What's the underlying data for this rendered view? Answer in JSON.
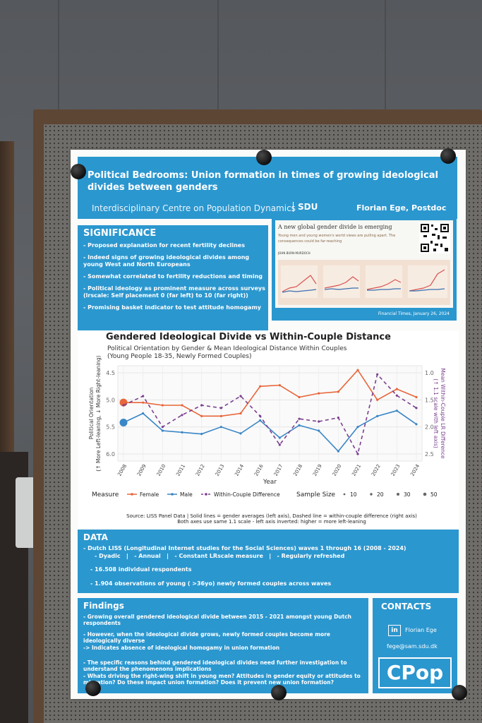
{
  "poster": {
    "title": "Political Bedrooms: Union formation in times of growing ideological divides between genders",
    "institute": "Interdisciplinary Centre on Population Dynamics",
    "university": "SDU",
    "author": "Florian Ege, Postdoc"
  },
  "significance": {
    "heading": "SIGNIFICANCE",
    "items": [
      "- Proposed explanation for recent fertility declines",
      "- Indeed signs of growing ideological divides among young West and North Europeans",
      "- Somewhat correlated to fertility reductions and timing",
      "- Political ideology as prominent measure across surveys (lrscale: Self placement 0 (far left) to 10 (far right))",
      "- Promising basket indicator to test attitude homogamy"
    ]
  },
  "clipping": {
    "headline": "A new global gender divide is emerging",
    "deck": "Young men and young women's world views are pulling apart. The consequences could be far-reaching",
    "byline": "JOHN BURN-MURDOCH",
    "caption": "Financial Times, January 26, 2024"
  },
  "chart_data": {
    "type": "line",
    "title": "Gendered Ideological Divide vs Within-Couple Distance",
    "subtitle": "Political Orientation by Gender & Mean Ideological Distance Within Couples",
    "subtitle2": "(Young People 18-35, Newly Formed Couples)",
    "xlabel": "Year",
    "ylabel": "Political Orientation",
    "ylabel2": "(↑ More Left-leaning, ↓ More Right-leaning)",
    "y2label": "Mean Within-Couple LR Difference",
    "y2label2": "(↑ 1.1 scale with left axis)",
    "x": [
      "2008",
      "2009",
      "2010",
      "2011",
      "2012",
      "2013",
      "2014",
      "2016",
      "2017",
      "2018",
      "2019",
      "2020",
      "2021",
      "2022",
      "2023",
      "2024"
    ],
    "ylim": [
      6.0,
      4.5
    ],
    "y2lim": [
      2.5,
      1.0
    ],
    "yticks": [
      "4.5",
      "5.0",
      "5.5",
      "6.0"
    ],
    "y2ticks": [
      "1.0",
      "1.5",
      "2.0",
      "2.5"
    ],
    "series": [
      {
        "name": "Female",
        "color": "#e8663a",
        "dashed": false,
        "axis": "left",
        "values": [
          5.05,
          5.05,
          5.1,
          5.1,
          5.3,
          5.3,
          5.25,
          4.75,
          4.73,
          4.95,
          4.88,
          4.85,
          4.45,
          5.0,
          4.8,
          4.95
        ]
      },
      {
        "name": "Male",
        "color": "#3a86c6",
        "dashed": false,
        "axis": "left",
        "values": [
          5.42,
          5.25,
          5.57,
          5.6,
          5.63,
          5.5,
          5.62,
          5.38,
          5.7,
          5.47,
          5.57,
          5.95,
          5.5,
          5.3,
          5.2,
          5.45
        ]
      },
      {
        "name": "Within-Couple Difference",
        "color": "#7b3f8f",
        "dashed": true,
        "axis": "right",
        "values": [
          1.6,
          1.43,
          2.0,
          1.78,
          1.6,
          1.65,
          1.43,
          1.8,
          2.33,
          1.85,
          1.9,
          1.83,
          2.5,
          1.03,
          1.42,
          1.65
        ]
      }
    ],
    "legend_label": "Measure",
    "size_label": "Sample Size",
    "size_values": [
      "10",
      "20",
      "30",
      "50"
    ],
    "source": "Source: LISS Panel Data | Solid lines = gender averages (left axis), Dashed line = within-couple difference (right axis)",
    "note": "Both axes use same 1.1 scale - left axis inverted: higher = more left-leaning"
  },
  "data_section": {
    "heading": "DATA",
    "line1": "- Dutch LISS (Longitudinal Internet studies for the Social Sciences) waves 1 through 16 (2008 - 2024)",
    "line2": "- Dyadic   |   - Annual   |   - Constant LRscale measure   |   - Regularly refreshed",
    "line3": "- 16.508 individual respondents",
    "line4": "- 1.904 observations of young ( >36yo) newly formed couples across waves"
  },
  "findings": {
    "heading": "Findings",
    "p1": "- Growing overall gendered ideological divide between 2015 - 2021 amongst young Dutch respondents",
    "p2": "- However, when the ideological divide grows, newly formed couples become more ideologically diverse",
    "p3": "-> Indicates absence of ideological homogamy in union formation",
    "p4": "- The specific reasons behind gendered ideological divides need further investigation to understand the phenomenons implications",
    "p5": "- Whats driving the right-wing shift in young men? Attitudes in gender equity or attitudes to migration? Do these impact union formation? Does it prevent new union formation?"
  },
  "contacts": {
    "heading": "CONTACTS",
    "linkedin": "in",
    "name": "Florian Ege",
    "email": "fege@sam.sdu.dk",
    "logo": "CPop"
  }
}
